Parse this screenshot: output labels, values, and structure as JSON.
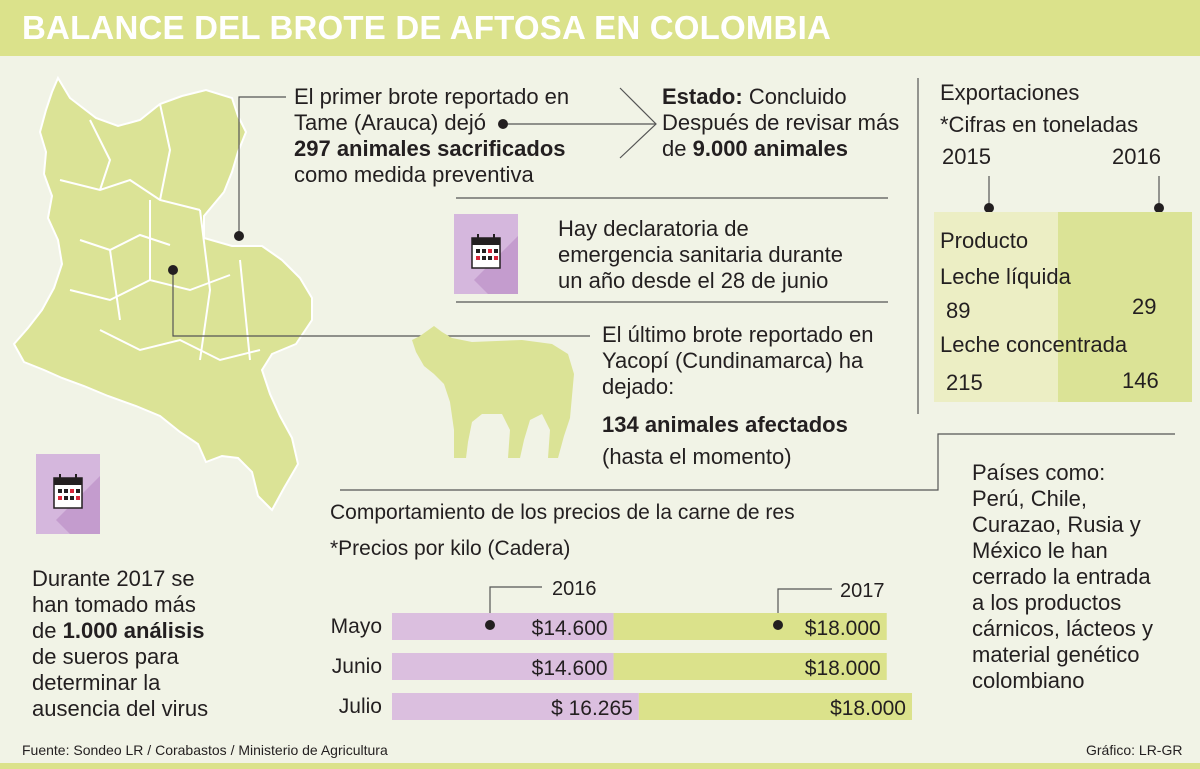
{
  "header": {
    "title": "BALANCE DEL BROTE DE AFTOSA EN COLOMBIA"
  },
  "brote_tame": {
    "line1": "El primer brote reportado en",
    "line2": "Tame (Arauca) dejó",
    "line3_bold": "297 animales sacrificados",
    "line4": "como medida preventiva"
  },
  "estado": {
    "label": "Estado:",
    "value": "Concluido",
    "line2": "Después de revisar más",
    "line3_pre": "de",
    "line3_bold": "9.000 animales"
  },
  "emergencia": {
    "icon": "calendar-icon",
    "line1": "Hay declaratoria de",
    "line2": "emergencia sanitaria durante",
    "line3": "un año desde el 28 de junio"
  },
  "brote_yacopi": {
    "line1": "El último brote reportado en",
    "line2": "Yacopí (Cundinamarca) ha",
    "line3": "dejado:",
    "bold": "134 animales afectados",
    "note": "(hasta el momento)",
    "icon": "cow-icon"
  },
  "analisis": {
    "icon": "calendar-icon",
    "line1": "Durante 2017 se",
    "line2": "han tomado más",
    "line3_pre": "de",
    "line3_bold": "1.000 análisis",
    "line4": "de sueros  para",
    "line5": "determinar la",
    "line6": "ausencia del virus"
  },
  "exportaciones": {
    "title": "Exportaciones",
    "subtitle": "*Cifras en toneladas",
    "year1": "2015",
    "year2": "2016",
    "header": "Producto",
    "rows": [
      {
        "product": "Leche líquida",
        "v2015": "89",
        "v2016": "29"
      },
      {
        "product": "Leche concentrada",
        "v2015": "215",
        "v2016": "146"
      }
    ]
  },
  "paises": {
    "lines": [
      "Países como:",
      "Perú, Chile,",
      "Curazao, Rusia y",
      "México le han",
      "cerrado la entrada",
      "a los productos",
      "cárnicos, lácteos y",
      "material genético",
      "colombiano"
    ]
  },
  "footer": {
    "source": "Fuente: Sondeo LR / Corabastos / Ministerio de Agricultura",
    "credit": "Gráfico: LR-GR"
  },
  "colors": {
    "header": "#dbe28b",
    "series_2016": "#dbbfdf",
    "series_2017": "#dbe28b",
    "map": "#dbe396",
    "background": "#f1f3e6"
  },
  "chart_data": {
    "type": "bar",
    "title": "Comportamiento de los precios de la carne de res",
    "subtitle": "*Precios por kilo  (Cadera)",
    "orientation": "horizontal-stacked",
    "categories": [
      "Mayo",
      "Junio",
      "Julio"
    ],
    "series": [
      {
        "name": "2016",
        "values": [
          14600,
          14600,
          16265
        ],
        "labels": [
          "$14.600",
          "$14.600",
          "$ 16.265"
        ],
        "color": "#dbbfdf"
      },
      {
        "name": "2017",
        "values": [
          18000,
          18000,
          18000
        ],
        "labels": [
          "$18.000",
          "$18.000",
          "$18.000"
        ],
        "color": "#dbe28b"
      }
    ],
    "legend": "above bars"
  }
}
